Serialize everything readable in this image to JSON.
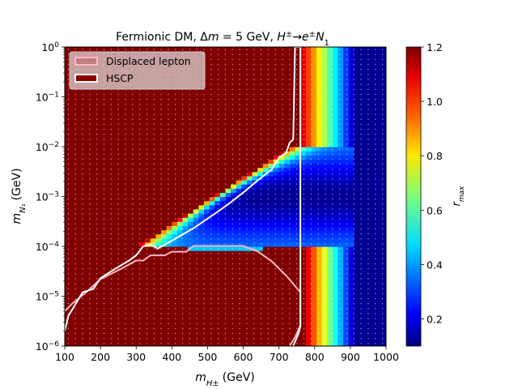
{
  "chart_data": {
    "type": "heatmap",
    "title": "Fermionic DM, Δm = 5 GeV, H±→e±N₁",
    "xlabel": "m_{H±} (GeV)",
    "ylabel": "m_{N₁} (GeV)",
    "xlim": [
      100,
      1000
    ],
    "ylim": [
      1e-06,
      1
    ],
    "yscale": "log",
    "x_ticks": [
      100,
      200,
      300,
      400,
      500,
      600,
      700,
      800,
      900,
      1000
    ],
    "x_tick_labels": [
      "100",
      "200",
      "300",
      "400",
      "500",
      "600",
      "700",
      "800",
      "900",
      "1000"
    ],
    "y_ticks": [
      1e-06,
      1e-05,
      0.0001,
      0.001,
      0.01,
      0.1,
      1
    ],
    "y_tick_labels": [
      {
        "base": "10",
        "exp": "−6"
      },
      {
        "base": "10",
        "exp": "−5"
      },
      {
        "base": "10",
        "exp": "−4"
      },
      {
        "base": "10",
        "exp": "−3"
      },
      {
        "base": "10",
        "exp": "−2"
      },
      {
        "base": "10",
        "exp": "−1"
      },
      {
        "base": "10",
        "exp": "0"
      }
    ],
    "colorbar": {
      "label": "r_max",
      "range": [
        0.1,
        1.2
      ],
      "ticks": [
        0.2,
        0.4,
        0.6,
        0.8,
        1.0,
        1.2
      ],
      "tick_labels": [
        "0.2",
        "0.4",
        "0.6",
        "0.8",
        "1.0",
        "1.2"
      ],
      "colormap": "jet"
    },
    "legend": {
      "placement": "top-left",
      "entries": [
        {
          "label": "Displaced lepton",
          "color": "#ffb6c1"
        },
        {
          "label": "HSCP",
          "color": "#ffffff"
        }
      ]
    },
    "grid": false,
    "contours": [
      {
        "name": "Displaced lepton",
        "color": "#ffb6c1",
        "points": [
          [
            100,
            5e-06
          ],
          [
            120,
            7e-06
          ],
          [
            160,
            1.2e-05
          ],
          [
            200,
            2.2e-05
          ],
          [
            260,
            3.6e-05
          ],
          [
            300,
            5.2e-05
          ],
          [
            320,
            5.2e-05
          ],
          [
            340,
            6.6e-05
          ],
          [
            380,
            6.6e-05
          ],
          [
            400,
            7.8e-05
          ],
          [
            440,
            7.8e-05
          ],
          [
            460,
            0.000102
          ],
          [
            500,
            0.000102
          ],
          [
            560,
            0.000102
          ],
          [
            600,
            0.000102
          ],
          [
            640,
            8e-05
          ],
          [
            680,
            5e-05
          ],
          [
            720,
            2.6e-05
          ],
          [
            760,
            1.2e-05
          ],
          [
            760,
            2.6e-06
          ],
          [
            745,
            1.5e-06
          ],
          [
            730,
            1e-06
          ]
        ]
      },
      {
        "name": "HSCP",
        "color": "#ffffff",
        "points": [
          [
            100,
            2e-06
          ],
          [
            110,
            4e-06
          ],
          [
            150,
            1.2e-05
          ],
          [
            180,
            1.4e-05
          ],
          [
            200,
            2.3e-05
          ],
          [
            240,
            3.5e-05
          ],
          [
            280,
            5.2e-05
          ],
          [
            300,
            6.6e-05
          ],
          [
            320,
            0.0001
          ],
          [
            340,
            0.00011
          ],
          [
            360,
            9e-05
          ],
          [
            400,
            0.00013
          ],
          [
            460,
            0.00023
          ],
          [
            520,
            0.00045
          ],
          [
            560,
            0.00072
          ],
          [
            600,
            0.0012
          ],
          [
            640,
            0.0021
          ],
          [
            680,
            0.0035
          ],
          [
            700,
            0.006
          ],
          [
            720,
            0.0075
          ],
          [
            730,
            0.012
          ],
          [
            740,
            0.014
          ],
          [
            745,
            1.0
          ],
          [
            760,
            1.0
          ],
          [
            760,
            2.5e-06
          ],
          [
            755,
            1.8e-06
          ],
          [
            740,
            1e-06
          ]
        ]
      }
    ]
  }
}
